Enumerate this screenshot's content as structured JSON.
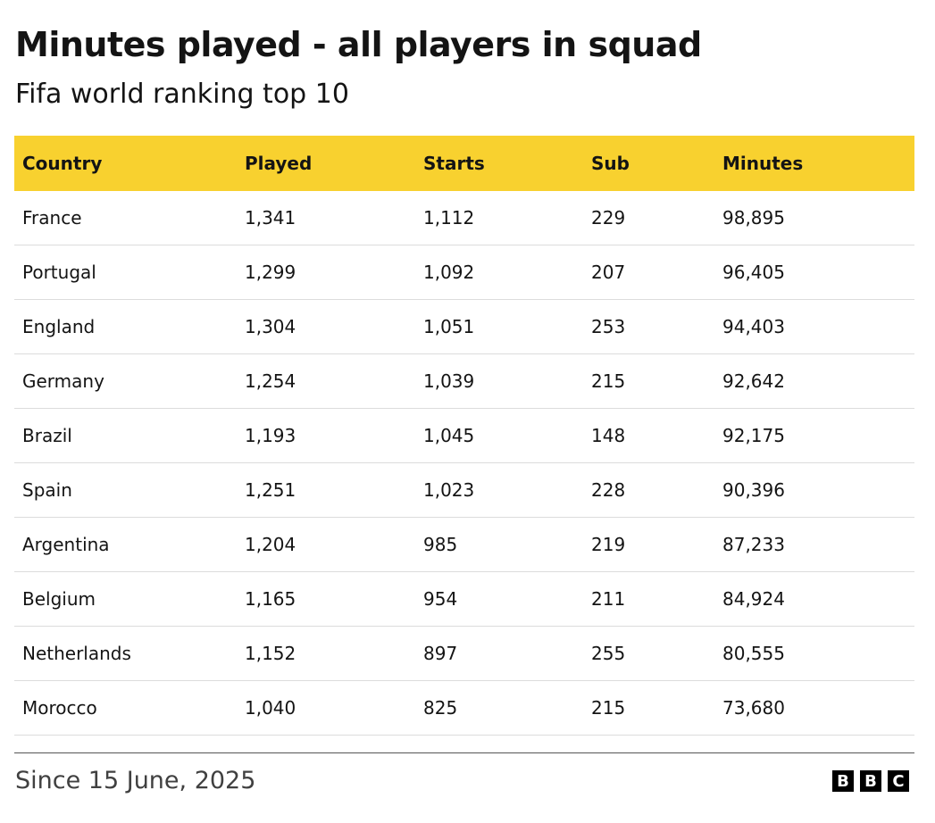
{
  "header": {
    "title": "Minutes played - all players in squad",
    "subtitle": "Fifa world ranking top 10"
  },
  "table": {
    "columns": [
      "Country",
      "Played",
      "Starts",
      "Sub",
      "Minutes"
    ],
    "rows": [
      [
        "France",
        "1,341",
        "1,112",
        "229",
        "98,895"
      ],
      [
        "Portugal",
        "1,299",
        "1,092",
        "207",
        "96,405"
      ],
      [
        "England",
        "1,304",
        "1,051",
        "253",
        "94,403"
      ],
      [
        "Germany",
        "1,254",
        "1,039",
        "215",
        "92,642"
      ],
      [
        "Brazil",
        "1,193",
        "1,045",
        "148",
        "92,175"
      ],
      [
        "Spain",
        "1,251",
        "1,023",
        "228",
        "90,396"
      ],
      [
        "Argentina",
        "1,204",
        "985",
        "219",
        "87,233"
      ],
      [
        "Belgium",
        "1,165",
        "954",
        "211",
        "84,924"
      ],
      [
        "Netherlands",
        "1,152",
        "897",
        "255",
        "80,555"
      ],
      [
        "Morocco",
        "1,040",
        "825",
        "215",
        "73,680"
      ]
    ]
  },
  "footer": {
    "note": "Since 15 June, 2025",
    "logo": [
      "B",
      "B",
      "C"
    ]
  }
}
